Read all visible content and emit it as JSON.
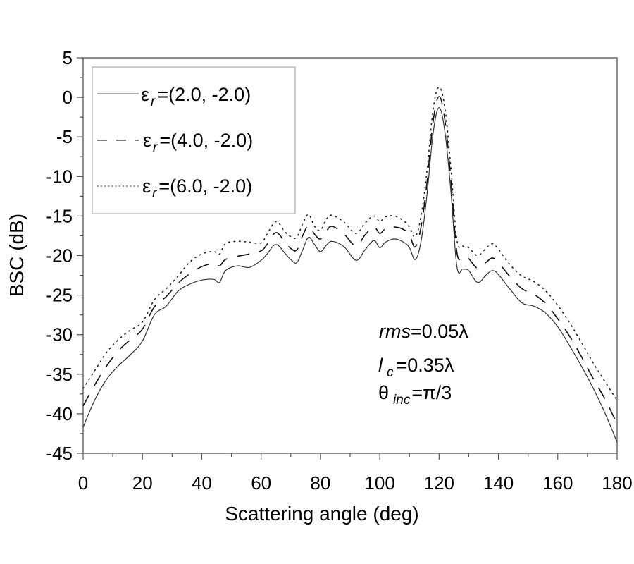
{
  "chart_data": {
    "type": "line",
    "title": "",
    "xlabel": "Scattering angle (deg)",
    "ylabel": "BSC (dB)",
    "xlim": [
      0,
      180
    ],
    "ylim": [
      -45,
      5
    ],
    "xticks": [
      0,
      20,
      40,
      60,
      80,
      100,
      120,
      140,
      160,
      180
    ],
    "yticks": [
      5,
      0,
      -5,
      -10,
      -15,
      -20,
      -25,
      -30,
      -35,
      -40,
      -45
    ],
    "grid": false,
    "legend_position": "upper-left",
    "series": [
      {
        "name": "εr=(2.0, -2.0)",
        "eps_real": "2.0",
        "eps_imag": "-2.0",
        "style": "solid",
        "x": [
          0,
          4,
          8,
          12,
          16,
          20,
          24,
          28,
          32,
          36,
          40,
          44,
          46,
          48,
          52,
          56,
          60,
          62,
          65,
          68,
          70,
          72,
          74,
          76,
          78,
          80,
          82,
          84,
          88,
          92,
          95,
          98,
          100,
          102,
          105,
          108,
          110,
          112,
          114,
          116,
          118,
          120,
          122,
          124,
          126,
          128,
          130,
          133,
          136,
          138,
          140,
          144,
          148,
          152,
          156,
          160,
          164,
          168,
          172,
          176,
          180
        ],
        "y": [
          -41.7,
          -38.2,
          -35.6,
          -33.9,
          -32.5,
          -30.8,
          -27.5,
          -26.4,
          -24.5,
          -23.6,
          -23.1,
          -23.0,
          -23.4,
          -21.9,
          -21.3,
          -21.5,
          -20.6,
          -19.8,
          -18.6,
          -19.7,
          -20.5,
          -20.9,
          -19.3,
          -17.7,
          -18.6,
          -19.5,
          -18.7,
          -18.2,
          -18.9,
          -20.6,
          -19.3,
          -18.1,
          -19.0,
          -18.3,
          -17.9,
          -18.3,
          -19.0,
          -20.5,
          -18.0,
          -12.0,
          -4.5,
          -1.3,
          -4.5,
          -12.0,
          -21.4,
          -21.7,
          -21.9,
          -23.4,
          -22.4,
          -21.9,
          -22.4,
          -24.3,
          -26.0,
          -26.4,
          -27.3,
          -29.0,
          -31.4,
          -34.0,
          -36.8,
          -40.0,
          -43.6
        ]
      },
      {
        "name": "εr=(4.0, -2.0)",
        "eps_real": "4.0",
        "eps_imag": "-2.0",
        "style": "dashed",
        "x": [
          0,
          4,
          8,
          12,
          16,
          20,
          24,
          28,
          32,
          36,
          40,
          44,
          46,
          48,
          52,
          56,
          60,
          62,
          65,
          68,
          70,
          72,
          74,
          76,
          78,
          80,
          82,
          84,
          88,
          92,
          95,
          98,
          100,
          102,
          105,
          108,
          110,
          112,
          114,
          116,
          118,
          120,
          122,
          124,
          126,
          128,
          130,
          133,
          136,
          138,
          140,
          144,
          148,
          152,
          156,
          160,
          164,
          168,
          172,
          176,
          180
        ],
        "y": [
          -39.0,
          -36.3,
          -33.9,
          -32.0,
          -30.6,
          -29.3,
          -26.5,
          -25.2,
          -23.5,
          -22.3,
          -21.4,
          -21.0,
          -21.3,
          -20.5,
          -20.1,
          -19.8,
          -19.4,
          -18.6,
          -17.1,
          -18.3,
          -19.1,
          -19.3,
          -17.5,
          -16.2,
          -17.3,
          -17.9,
          -16.9,
          -16.3,
          -17.3,
          -18.8,
          -17.4,
          -16.4,
          -17.2,
          -16.6,
          -16.4,
          -16.7,
          -17.4,
          -18.9,
          -16.2,
          -10.5,
          -3.0,
          0.1,
          -3.0,
          -10.5,
          -19.6,
          -20.2,
          -20.4,
          -21.6,
          -20.8,
          -20.3,
          -20.9,
          -22.7,
          -24.2,
          -24.9,
          -26.1,
          -28.0,
          -30.2,
          -32.8,
          -35.6,
          -38.2,
          -41.3
        ]
      },
      {
        "name": "εr=(6.0, -2.0)",
        "eps_real": "6.0",
        "eps_imag": "-2.0",
        "style": "dotted",
        "x": [
          0,
          4,
          8,
          12,
          16,
          20,
          24,
          28,
          32,
          36,
          40,
          44,
          46,
          48,
          52,
          56,
          60,
          62,
          65,
          68,
          70,
          72,
          74,
          76,
          78,
          80,
          82,
          84,
          88,
          92,
          95,
          98,
          100,
          102,
          105,
          108,
          110,
          112,
          114,
          116,
          118,
          120,
          122,
          124,
          126,
          128,
          130,
          133,
          136,
          138,
          140,
          144,
          148,
          152,
          156,
          160,
          164,
          168,
          172,
          176,
          180
        ],
        "y": [
          -36.8,
          -34.5,
          -32.2,
          -30.6,
          -29.4,
          -28.4,
          -25.6,
          -24.2,
          -22.6,
          -20.8,
          -19.8,
          -19.5,
          -19.8,
          -18.5,
          -18.2,
          -18.3,
          -18.4,
          -17.3,
          -15.7,
          -17.0,
          -17.6,
          -17.7,
          -16.0,
          -14.8,
          -16.3,
          -16.8,
          -15.4,
          -14.9,
          -15.8,
          -17.2,
          -15.9,
          -15.0,
          -15.7,
          -15.1,
          -15.0,
          -15.6,
          -16.4,
          -17.6,
          -14.8,
          -9.0,
          -1.5,
          1.3,
          -1.5,
          -9.0,
          -18.0,
          -18.8,
          -19.0,
          -20.0,
          -19.0,
          -18.5,
          -19.2,
          -21.2,
          -22.6,
          -23.3,
          -24.5,
          -26.3,
          -28.5,
          -31.0,
          -33.6,
          -36.0,
          -38.3
        ]
      }
    ],
    "annotations": [
      {
        "text_italic": "rms",
        "text": "=0.05λ"
      },
      {
        "text_italic": "l",
        "sub": "c",
        "text": "=0.35λ"
      },
      {
        "symbol": "θ",
        "sub": "inc",
        "text": "=π/3"
      }
    ]
  },
  "legend": {
    "symbol": "ε",
    "sub": "r",
    "entries": [
      {
        "value": "=(2.0, -2.0)"
      },
      {
        "value": "=(4.0, -2.0)"
      },
      {
        "value": "=(6.0, -2.0)"
      }
    ]
  },
  "annotation": {
    "rms_italic": "rms",
    "rms_value": "=0.05λ",
    "lc_italic": "l",
    "lc_sub": "c",
    "lc_value": "=0.35λ",
    "theta_symbol": "θ",
    "theta_sub": "inc",
    "theta_value": "=π/3"
  },
  "axes": {
    "xlabel": "Scattering angle (deg)",
    "ylabel": "BSC (dB)",
    "xtick_labels": [
      "0",
      "20",
      "40",
      "60",
      "80",
      "100",
      "120",
      "140",
      "160",
      "180"
    ],
    "ytick_labels": [
      "5",
      "0",
      "-5",
      "-10",
      "-15",
      "-20",
      "-25",
      "-30",
      "-35",
      "-40",
      "-45"
    ]
  },
  "colors": {
    "frame": "#555555",
    "legend_border": "#aaaaaa",
    "line": "#222222",
    "text": "#000000"
  }
}
